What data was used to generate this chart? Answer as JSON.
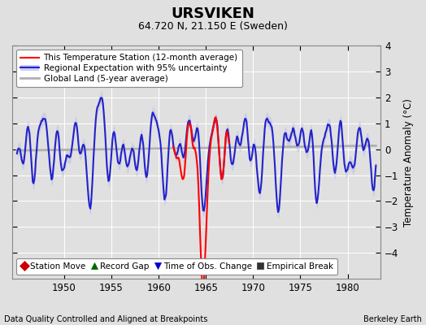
{
  "title": "URSVIKEN",
  "subtitle": "64.720 N, 21.150 E (Sweden)",
  "xlabel_left": "Data Quality Controlled and Aligned at Breakpoints",
  "xlabel_right": "Berkeley Earth",
  "ylabel": "Temperature Anomaly (°C)",
  "xlim": [
    1944.5,
    1983.5
  ],
  "ylim": [
    -5,
    4
  ],
  "yticks": [
    -4,
    -3,
    -2,
    -1,
    0,
    1,
    2,
    3,
    4
  ],
  "xticks": [
    1950,
    1955,
    1960,
    1965,
    1970,
    1975,
    1980
  ],
  "legend_items": [
    {
      "label": "This Temperature Station (12-month average)",
      "color": "#ff0000",
      "lw": 1.5
    },
    {
      "label": "Regional Expectation with 95% uncertainty",
      "color": "#2222cc",
      "lw": 1.5
    },
    {
      "label": "Global Land (5-year average)",
      "color": "#b0b0b0",
      "lw": 2.0
    }
  ],
  "legend_marker_items": [
    {
      "label": "Station Move",
      "marker": "D",
      "color": "#cc0000"
    },
    {
      "label": "Record Gap",
      "marker": "^",
      "color": "#006600"
    },
    {
      "label": "Time of Obs. Change",
      "marker": "v",
      "color": "#0000cc"
    },
    {
      "label": "Empirical Break",
      "marker": "s",
      "color": "#333333"
    }
  ],
  "bg_color": "#e0e0e0",
  "plot_bg_color": "#e0e0e0",
  "grid_color": "#ffffff",
  "uncertainty_alpha": 0.35,
  "uncertainty_color": "#aaaaee",
  "figsize": [
    5.24,
    4.0
  ],
  "dpi": 100
}
